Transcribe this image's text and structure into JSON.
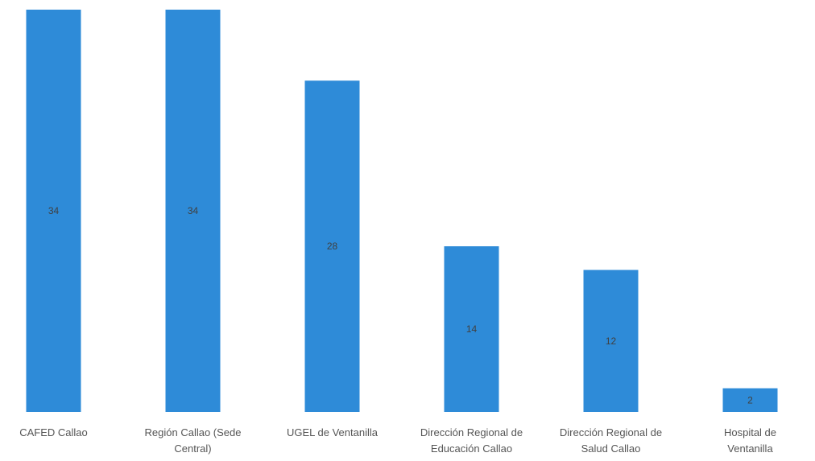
{
  "chart_data": {
    "type": "bar",
    "title": "",
    "xlabel": "",
    "ylabel": "",
    "categories": [
      [
        "CAFED Callao"
      ],
      [
        "Región Callao (Sede",
        "Central)"
      ],
      [
        "UGEL de Ventanilla"
      ],
      [
        "Dirección Regional de",
        "Educación Callao"
      ],
      [
        "Dirección Regional de",
        "Salud Callao"
      ],
      [
        "Hospital de",
        "Ventanilla"
      ]
    ],
    "values": [
      34,
      34,
      28,
      14,
      12,
      2
    ],
    "ylim": [
      0,
      34
    ],
    "grid": false,
    "legend": "none",
    "bar_color": "#2E8BD8",
    "label_color": "#404040"
  }
}
